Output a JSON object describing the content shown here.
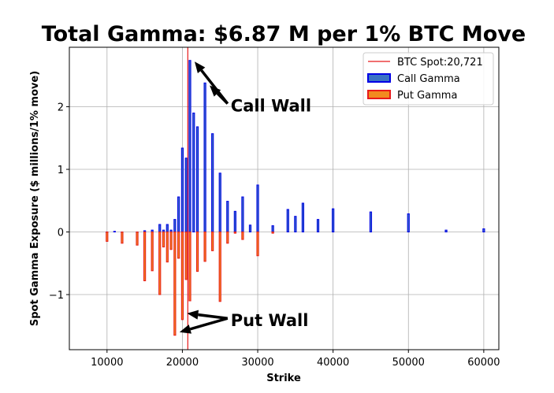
{
  "chart_data": {
    "type": "bar",
    "title": "Total Gamma: $6.87 M per 1% BTC Move",
    "xlabel": "Strike",
    "ylabel": "Spot Gamma Exposure ($ millions/1% move)",
    "xlim": [
      5000,
      62000
    ],
    "ylim": [
      -1.88,
      2.95
    ],
    "xticks": [
      10000,
      20000,
      30000,
      40000,
      50000,
      60000
    ],
    "yticks": [
      -1,
      0,
      1,
      2
    ],
    "grid": true,
    "legend_position": "top-right",
    "spot": {
      "label": "BTC Spot:20,721",
      "value": 20721,
      "color": "#e8191a"
    },
    "series": [
      {
        "name": "Call Gamma",
        "fill": "#3a72c4",
        "edge": "#0000e6",
        "points": [
          [
            10000,
            0.0
          ],
          [
            11000,
            0.01
          ],
          [
            12000,
            0.0
          ],
          [
            14000,
            0.0
          ],
          [
            15000,
            0.02
          ],
          [
            16000,
            0.03
          ],
          [
            17000,
            0.12
          ],
          [
            17500,
            0.03
          ],
          [
            18000,
            0.12
          ],
          [
            18500,
            0.03
          ],
          [
            19000,
            0.2
          ],
          [
            19500,
            0.56
          ],
          [
            20000,
            1.34
          ],
          [
            20500,
            1.18
          ],
          [
            21000,
            2.74
          ],
          [
            21500,
            1.9
          ],
          [
            22000,
            1.68
          ],
          [
            23000,
            2.38
          ],
          [
            24000,
            1.57
          ],
          [
            25000,
            0.94
          ],
          [
            26000,
            0.49
          ],
          [
            27000,
            0.33
          ],
          [
            28000,
            0.56
          ],
          [
            29000,
            0.11
          ],
          [
            30000,
            0.75
          ],
          [
            32000,
            0.1
          ],
          [
            34000,
            0.36
          ],
          [
            35000,
            0.25
          ],
          [
            36000,
            0.46
          ],
          [
            38000,
            0.2
          ],
          [
            40000,
            0.37
          ],
          [
            45000,
            0.32
          ],
          [
            50000,
            0.29
          ],
          [
            55000,
            0.03
          ],
          [
            60000,
            0.05
          ]
        ]
      },
      {
        "name": "Put Gamma",
        "fill": "#f28a1f",
        "edge": "#e8191a",
        "points": [
          [
            10000,
            -0.15
          ],
          [
            12000,
            -0.18
          ],
          [
            14000,
            -0.21
          ],
          [
            15000,
            -0.78
          ],
          [
            16000,
            -0.62
          ],
          [
            17000,
            -1.0
          ],
          [
            17500,
            -0.24
          ],
          [
            18000,
            -0.48
          ],
          [
            18500,
            -0.28
          ],
          [
            19000,
            -1.65
          ],
          [
            19500,
            -0.42
          ],
          [
            20000,
            -1.4
          ],
          [
            20500,
            -0.76
          ],
          [
            21000,
            -1.1
          ],
          [
            22000,
            -0.63
          ],
          [
            23000,
            -0.47
          ],
          [
            24000,
            -0.3
          ],
          [
            25000,
            -1.11
          ],
          [
            26000,
            -0.18
          ],
          [
            27000,
            -0.02
          ],
          [
            28000,
            -0.12
          ],
          [
            30000,
            -0.38
          ],
          [
            32000,
            -0.02
          ]
        ]
      }
    ],
    "annotations": [
      {
        "text": "Call Wall",
        "x": 26000,
        "y": 2.05,
        "targets": [
          [
            21000,
            2.72
          ],
          [
            23000,
            2.34
          ]
        ]
      },
      {
        "text": "Put Wall",
        "x": 26000,
        "y": -1.38,
        "targets": [
          [
            20000,
            -1.3
          ],
          [
            19000,
            -1.6
          ]
        ]
      }
    ]
  }
}
